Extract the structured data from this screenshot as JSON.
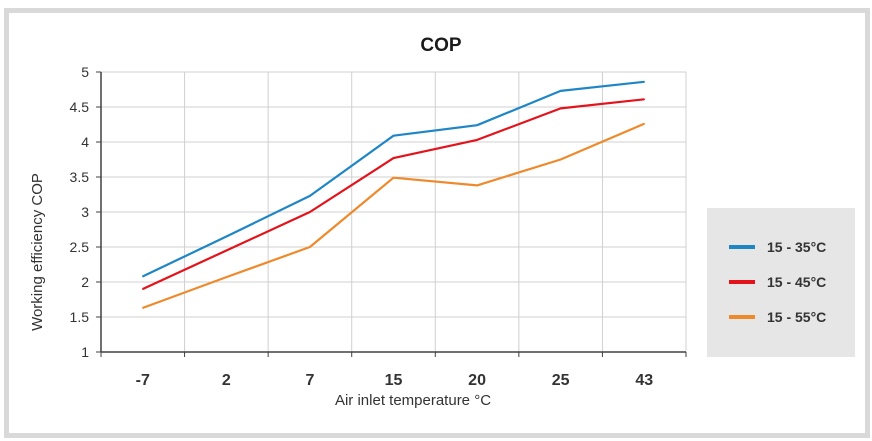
{
  "chart_data": {
    "type": "line",
    "title": "COP",
    "xlabel": "Air inlet temperature °C",
    "ylabel": "Working efficiency COP",
    "categories": [
      "-7",
      "2",
      "7",
      "15",
      "20",
      "25",
      "43"
    ],
    "ylim": [
      1,
      5
    ],
    "yticks": [
      "1",
      "1.5",
      "2",
      "2.5",
      "3",
      "3.5",
      "4",
      "4.5",
      "5"
    ],
    "grid": true,
    "legend_position": "right",
    "series": [
      {
        "name": "15 - 35°C",
        "color": "#1f86c6",
        "values": [
          2.08,
          2.65,
          3.23,
          4.09,
          4.24,
          4.73,
          4.86
        ]
      },
      {
        "name": "15 - 45°C",
        "color": "#e3131b",
        "values": [
          1.9,
          2.45,
          3.0,
          3.77,
          4.03,
          4.48,
          4.61
        ]
      },
      {
        "name": "15 - 55°C",
        "color": "#ee8a2c",
        "values": [
          1.63,
          2.07,
          2.5,
          3.49,
          3.38,
          3.75,
          4.26
        ]
      }
    ]
  }
}
